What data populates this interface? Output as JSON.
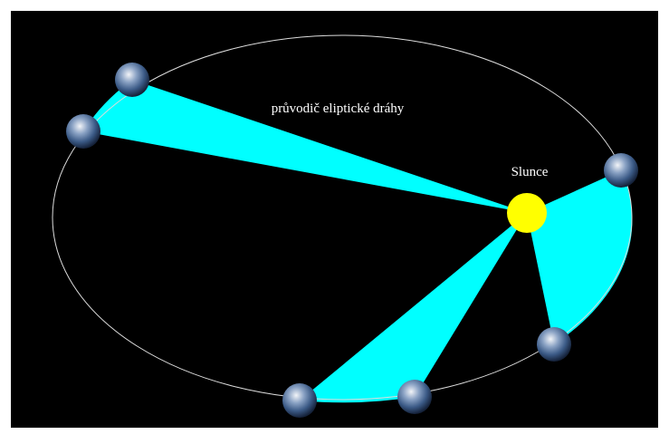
{
  "labels": {
    "radius_vector": "průvodič eliptické dráhy",
    "sun": "Slunce"
  }
}
